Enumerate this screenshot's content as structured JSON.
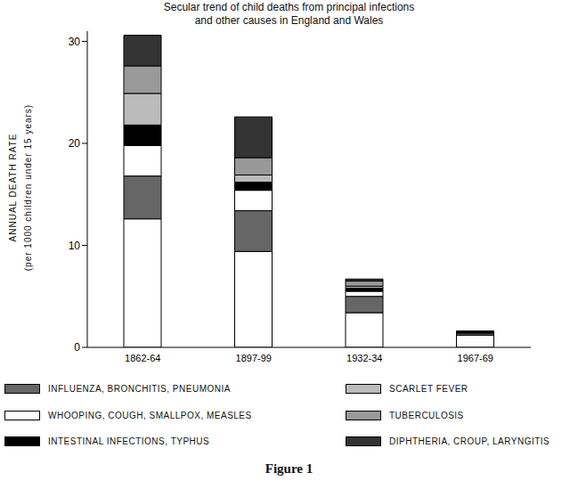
{
  "chart_data": {
    "type": "bar",
    "stacked": true,
    "legend": "bottom",
    "title": "Secular trend of child deaths from principal infections\nand other causes in England and Wales",
    "ylabel": "ANNUAL DEATH RATE\n(per 1000 children under 15 years)",
    "caption": "Figure 1",
    "categories": [
      "1862-64",
      "1897-99",
      "1932-34",
      "1967-69"
    ],
    "ylim": [
      0,
      31
    ],
    "yticks": [
      0,
      10,
      20,
      30
    ],
    "series": [
      {
        "name": null,
        "color": "#ffffff",
        "values": [
          12.6,
          9.4,
          3.4,
          1.2
        ]
      },
      {
        "name": "INFLUENZA, BRONCHITIS, PNEUMONIA",
        "color": "#666666",
        "values": [
          4.2,
          4.0,
          1.6,
          0.2
        ]
      },
      {
        "name": "WHOOPING, COUGH, SMALLPOX, MEASLES",
        "color": "#ffffff",
        "values": [
          3.0,
          2.0,
          0.5,
          0.05
        ]
      },
      {
        "name": "INTESTINAL INFECTIONS, TYPHUS",
        "color": "#000000",
        "values": [
          2.0,
          0.8,
          0.3,
          0.05
        ]
      },
      {
        "name": "SCARLET FEVER",
        "color": "#bbbbbb",
        "values": [
          3.1,
          0.7,
          0.2,
          0.02
        ]
      },
      {
        "name": "TUBERCULOSIS",
        "color": "#999999",
        "values": [
          2.7,
          1.7,
          0.5,
          0.05
        ]
      },
      {
        "name": "DIPHTHERIA, CROUP, LARYNGITIS",
        "color": "#333333",
        "values": [
          3.0,
          4.0,
          0.2,
          0.03
        ]
      }
    ]
  }
}
